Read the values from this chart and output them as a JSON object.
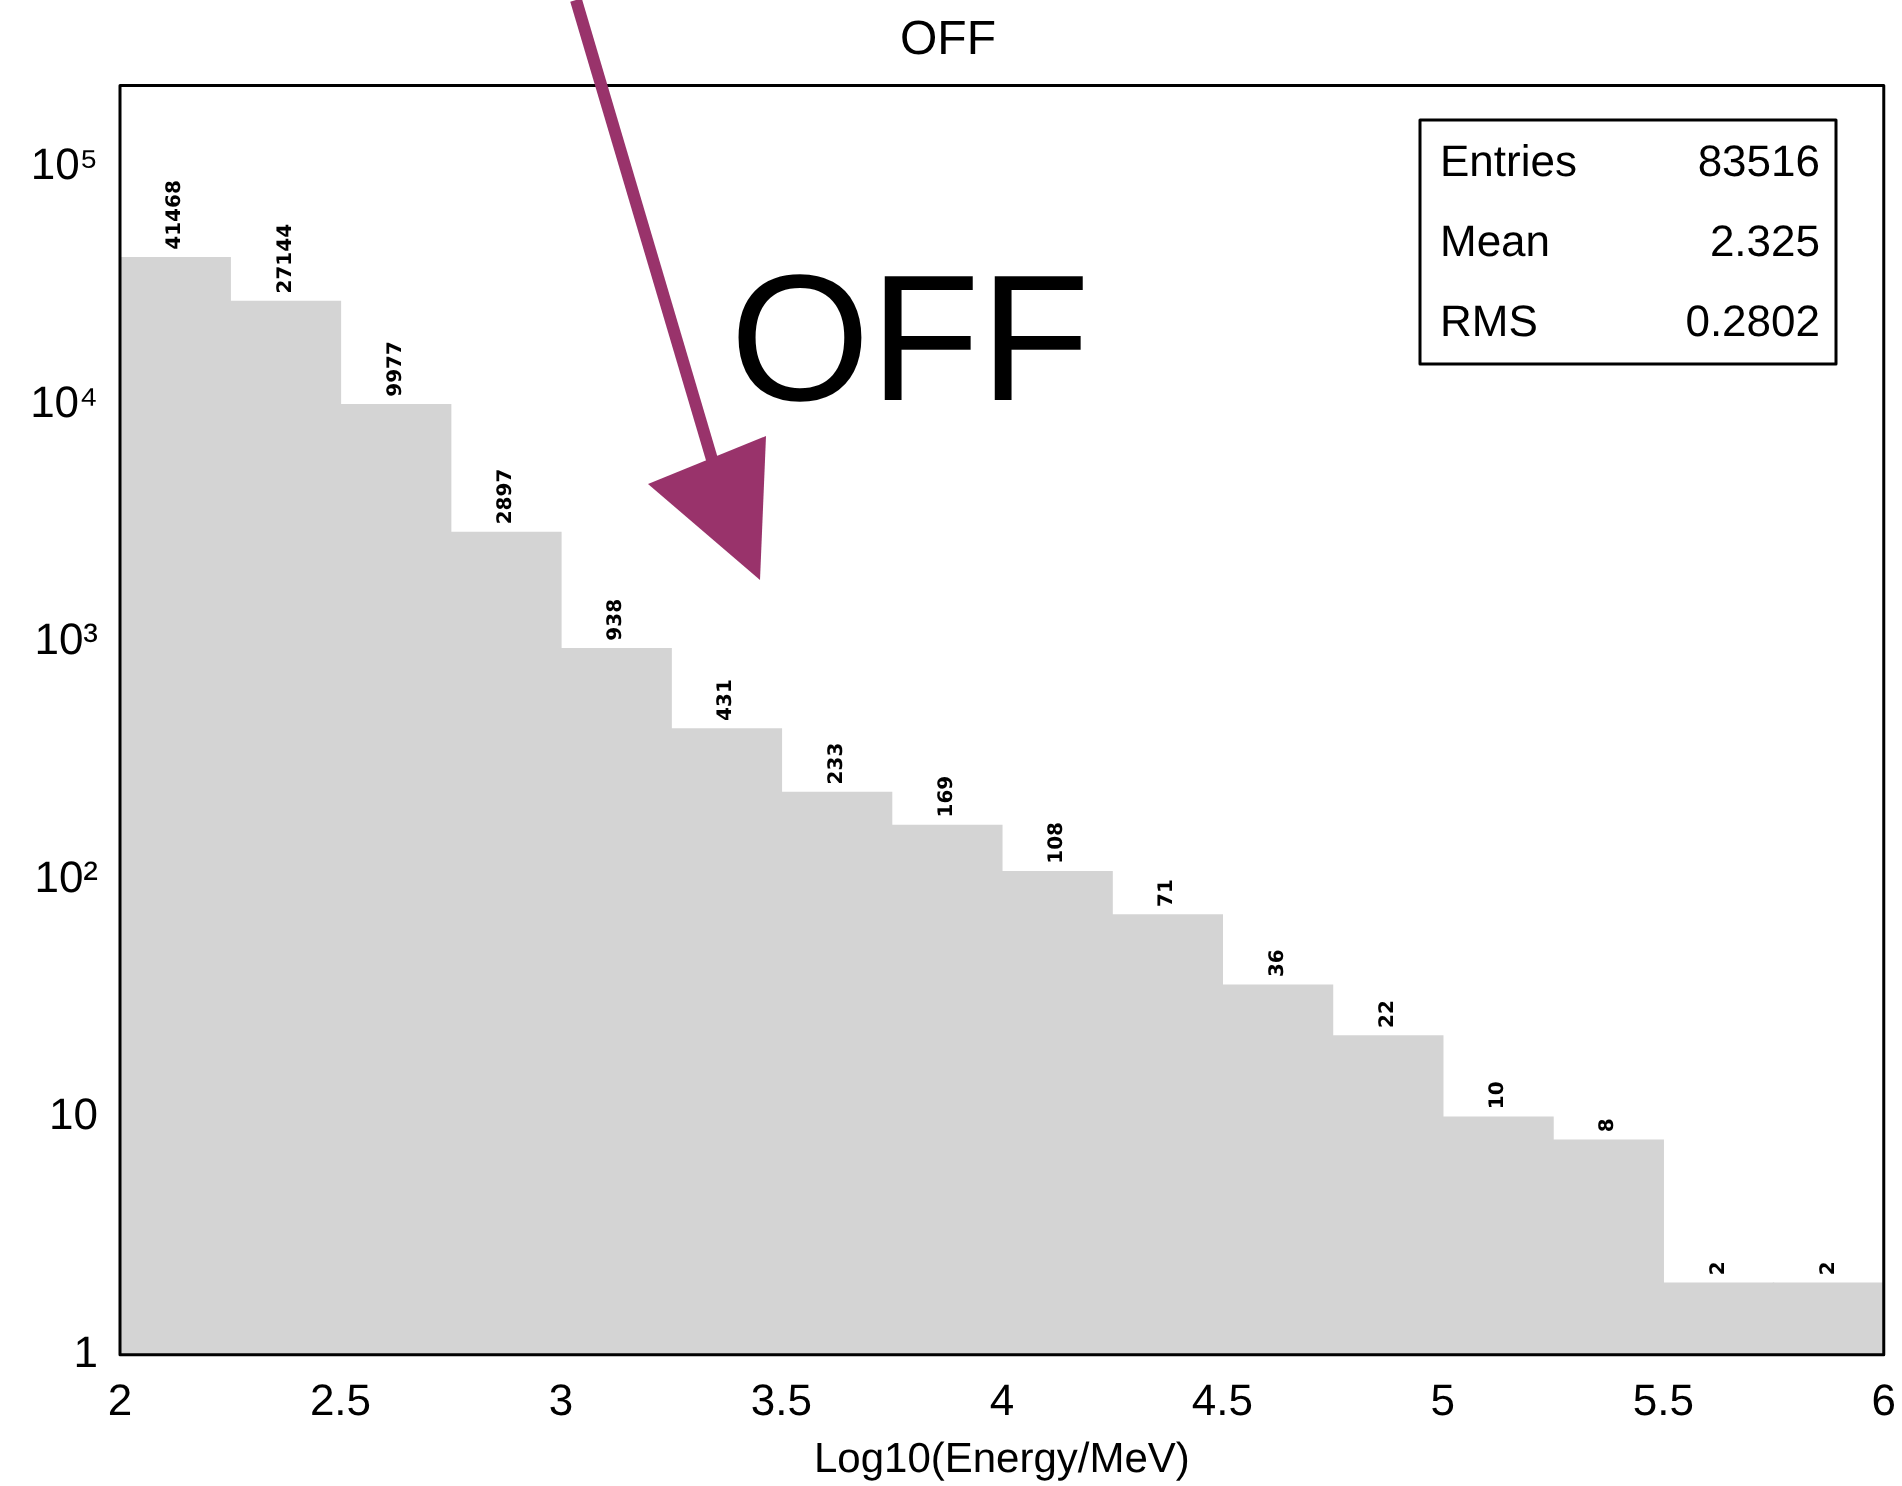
{
  "chart_data": {
    "type": "histogram",
    "title": "OFF",
    "xlabel": "Log10(Energy/MeV)",
    "bins": [
      2,
      2.25,
      2.5,
      2.75,
      3,
      3.25,
      3.5,
      3.75,
      4,
      4.25,
      4.5,
      4.75,
      5,
      5.25,
      5.5,
      5.75,
      6
    ],
    "values": [
      41468,
      27144,
      9977,
      2897,
      938,
      431,
      233,
      169,
      108,
      71,
      36,
      22,
      10,
      8,
      2,
      2
    ],
    "color": "#d4d4d4",
    "data_labels": true,
    "log": true,
    "grid": false,
    "legend": false,
    "xlim": [
      2,
      6
    ],
    "xticks": [
      2,
      2.5,
      3,
      3.5,
      4,
      4.5,
      5,
      5.5,
      6
    ],
    "ylim": [
      1,
      220000
    ],
    "yticks": [
      1,
      10,
      {
        "value": 100,
        "label": "10²"
      },
      {
        "value": 1000,
        "label": "10³"
      },
      {
        "value": 10000,
        "label": "10⁴"
      },
      {
        "value": 100000,
        "label": "10⁵"
      }
    ],
    "annotations": [
      "OFF",
      "Entries",
      "83516",
      "Mean",
      "2.325",
      "RMS",
      "0.2802"
    ]
  }
}
